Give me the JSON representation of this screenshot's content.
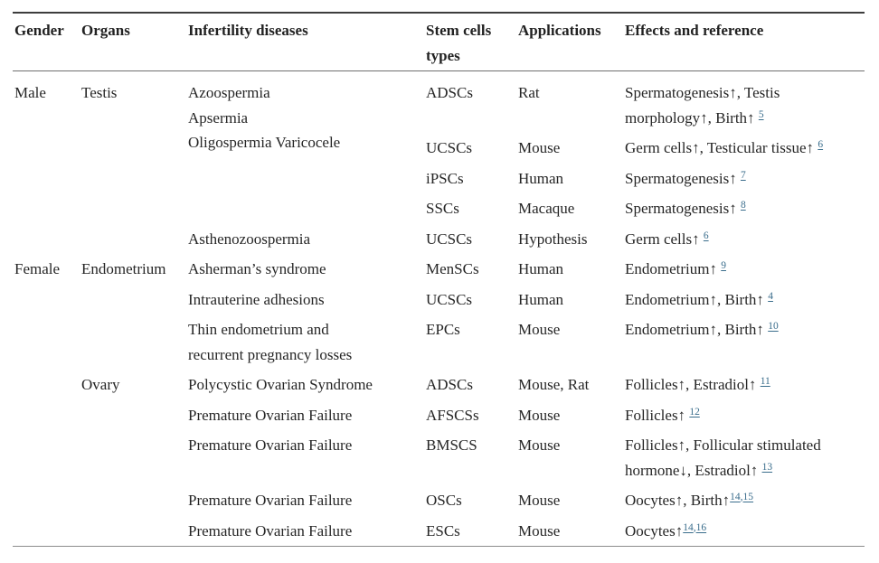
{
  "table": {
    "headers": [
      "Gender",
      "Organs",
      "Infertility diseases",
      "Stem cells types",
      "Applications",
      "Effects and reference"
    ],
    "rows": [
      {
        "gender": {
          "text": "Male",
          "rowspan": 5
        },
        "organs": {
          "text": "Testis",
          "rowspan": 5
        },
        "disease": {
          "lines": [
            "Azoospermia",
            "Apsermia",
            "Oligospermia Varicocele"
          ],
          "rowspan": 4
        },
        "stem": "ADSCs",
        "application": "Rat",
        "effects_lines": [
          "Spermatogenesis↑, Testis",
          "morphology↑, Birth↑ "
        ],
        "refs": [
          "5"
        ]
      },
      {
        "stem": "UCSCs",
        "application": "Mouse",
        "effects_lines": [
          "Germ cells↑, Testicular tissue↑ "
        ],
        "refs": [
          "6"
        ]
      },
      {
        "stem": "iPSCs",
        "application": "Human",
        "effects_lines": [
          "Spermatogenesis↑ "
        ],
        "refs": [
          "7"
        ]
      },
      {
        "stem": "SSCs",
        "application": "Macaque",
        "effects_lines": [
          "Spermatogenesis↑ "
        ],
        "refs": [
          "8"
        ]
      },
      {
        "disease": {
          "lines": [
            "Asthenozoospermia"
          ],
          "rowspan": 1
        },
        "stem": "UCSCs",
        "application": "Hypothesis",
        "effects_lines": [
          "Germ cells↑ "
        ],
        "refs": [
          "6"
        ]
      },
      {
        "gender": {
          "text": "Female",
          "rowspan": 8
        },
        "organs": {
          "text": "Endometrium",
          "rowspan": 3
        },
        "disease": {
          "lines": [
            "Asherman’s syndrome"
          ],
          "rowspan": 1
        },
        "stem": "MenSCs",
        "application": "Human",
        "effects_lines": [
          "Endometrium↑ "
        ],
        "refs": [
          "9"
        ]
      },
      {
        "disease": {
          "lines": [
            "Intrauterine adhesions"
          ],
          "rowspan": 1
        },
        "stem": "UCSCs",
        "application": "Human",
        "effects_lines": [
          "Endometrium↑, Birth↑ "
        ],
        "refs": [
          "4"
        ]
      },
      {
        "disease": {
          "lines": [
            "Thin endometrium and",
            "recurrent pregnancy losses"
          ],
          "rowspan": 1
        },
        "stem": "EPCs",
        "application": "Mouse",
        "effects_lines": [
          "Endometrium↑, Birth↑ "
        ],
        "refs": [
          "10"
        ]
      },
      {
        "organs": {
          "text": "Ovary",
          "rowspan": 5
        },
        "disease": {
          "lines": [
            "Polycystic Ovarian Syndrome"
          ],
          "rowspan": 1
        },
        "stem": "ADSCs",
        "application": "Mouse, Rat",
        "effects_lines": [
          "Follicles↑, Estradiol↑ "
        ],
        "refs": [
          "11"
        ]
      },
      {
        "disease": {
          "lines": [
            "Premature Ovarian Failure"
          ],
          "rowspan": 1
        },
        "stem": "AFSCSs",
        "application": "Mouse",
        "effects_lines": [
          "Follicles↑ "
        ],
        "refs": [
          "12"
        ]
      },
      {
        "disease": {
          "lines": [
            "Premature Ovarian Failure"
          ],
          "rowspan": 1
        },
        "stem": "BMSCS",
        "application": "Mouse",
        "effects_lines": [
          "Follicles↑, Follicular stimulated",
          "hormone↓, Estradiol↑ "
        ],
        "refs": [
          "13"
        ]
      },
      {
        "disease": {
          "lines": [
            "Premature Ovarian Failure"
          ],
          "rowspan": 1
        },
        "stem": "OSCs",
        "application": "Mouse",
        "effects_lines": [
          "Oocytes↑, Birth↑"
        ],
        "refs": [
          "14",
          "15"
        ]
      },
      {
        "disease": {
          "lines": [
            "Premature Ovarian Failure"
          ],
          "rowspan": 1
        },
        "stem": "ESCs",
        "application": "Mouse",
        "effects_lines": [
          "Oocytes↑"
        ],
        "refs": [
          "14",
          "16"
        ]
      }
    ],
    "colors": {
      "text": "#262626",
      "reference_link": "#3a6d8c",
      "border_top": "#3d3d3d",
      "border_header": "#6e6e6e",
      "border_bottom": "#8c8c8c"
    }
  }
}
